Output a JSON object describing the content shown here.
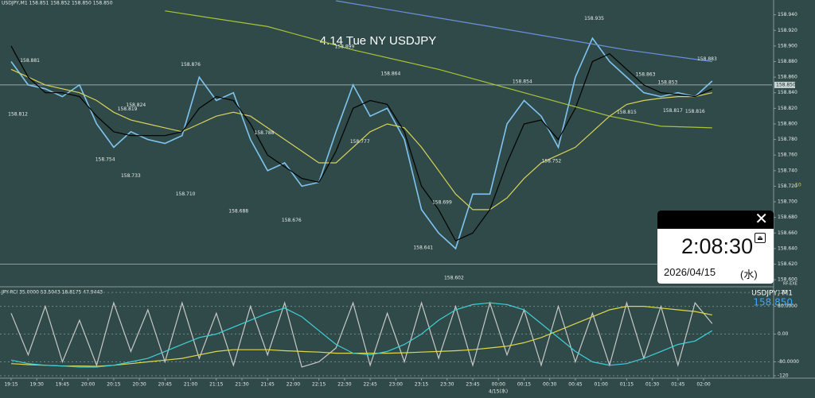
{
  "chart_data": [
    {
      "type": "line",
      "title": "4.14 Tue NY USDJPY",
      "header": "USDJPY,M1  158.851 158.852 158.850 158.850",
      "date_label": "4/15(水)",
      "axis_note": "10",
      "corner_note": "RF-EXE",
      "xlim": [
        -6.5,
        445
      ],
      "ylim": [
        158.592,
        158.959
      ],
      "xticks": [
        {
          "value": 0,
          "label": "19:15"
        },
        {
          "value": 15,
          "label": "19:30"
        },
        {
          "value": 30,
          "label": "19:45"
        },
        {
          "value": 45,
          "label": "20:00"
        },
        {
          "value": 60,
          "label": "20:15"
        },
        {
          "value": 75,
          "label": "20:30"
        },
        {
          "value": 90,
          "label": "20:45"
        },
        {
          "value": 105,
          "label": "21:00"
        },
        {
          "value": 120,
          "label": "21:15"
        },
        {
          "value": 135,
          "label": "21:30"
        },
        {
          "value": 150,
          "label": "21:45"
        },
        {
          "value": 165,
          "label": "22:00"
        },
        {
          "value": 180,
          "label": "22:15"
        },
        {
          "value": 195,
          "label": "22:30"
        },
        {
          "value": 210,
          "label": "22:45"
        },
        {
          "value": 225,
          "label": "23:00"
        },
        {
          "value": 240,
          "label": "23:15"
        },
        {
          "value": 255,
          "label": "23:30"
        },
        {
          "value": 270,
          "label": "23:45"
        },
        {
          "value": 285,
          "label": "00:00"
        },
        {
          "value": 300,
          "label": "00:15"
        },
        {
          "value": 315,
          "label": "00:30"
        },
        {
          "value": 330,
          "label": "00:45"
        },
        {
          "value": 345,
          "label": "01:00"
        },
        {
          "value": 360,
          "label": "01:15"
        },
        {
          "value": 375,
          "label": "01:30"
        },
        {
          "value": 390,
          "label": "01:45"
        },
        {
          "value": 405,
          "label": "02:00"
        }
      ],
      "yticks": [
        {
          "value": 158.94,
          "label": "158.940"
        },
        {
          "value": 158.92,
          "label": "158.920"
        },
        {
          "value": 158.9,
          "label": "158.900"
        },
        {
          "value": 158.88,
          "label": "158.880"
        },
        {
          "value": 158.86,
          "label": "158.860"
        },
        {
          "value": 158.84,
          "label": "158.840"
        },
        {
          "value": 158.82,
          "label": "158.820"
        },
        {
          "value": 158.8,
          "label": "158.800"
        },
        {
          "value": 158.78,
          "label": "158.780"
        },
        {
          "value": 158.76,
          "label": "158.760"
        },
        {
          "value": 158.74,
          "label": "158.740"
        },
        {
          "value": 158.72,
          "label": "158.720"
        },
        {
          "value": 158.7,
          "label": "158.700"
        },
        {
          "value": 158.68,
          "label": "158.680"
        },
        {
          "value": 158.66,
          "label": "158.660"
        },
        {
          "value": 158.64,
          "label": "158.640"
        },
        {
          "value": 158.62,
          "label": "158.620"
        },
        {
          "value": 158.6,
          "label": "158.600"
        }
      ],
      "last_price": {
        "value": 158.85,
        "label": "158.850"
      },
      "hline": 158.62,
      "x": [
        0,
        10,
        20,
        30,
        40,
        50,
        60,
        70,
        80,
        90,
        100,
        110,
        120,
        130,
        140,
        150,
        160,
        170,
        180,
        190,
        200,
        210,
        220,
        230,
        240,
        250,
        260,
        270,
        280,
        290,
        300,
        310,
        320,
        330,
        340,
        350,
        360,
        370,
        380,
        390,
        400,
        410
      ],
      "series": [
        {
          "color": "#7fc4f0",
          "values": [
            158.88,
            158.85,
            158.845,
            158.835,
            158.85,
            158.8,
            158.77,
            158.79,
            158.78,
            158.775,
            158.785,
            158.86,
            158.83,
            158.84,
            158.78,
            158.74,
            158.75,
            158.72,
            158.725,
            158.79,
            158.85,
            158.81,
            158.82,
            158.78,
            158.69,
            158.66,
            158.64,
            158.71,
            158.71,
            158.8,
            158.83,
            158.81,
            158.77,
            158.86,
            158.91,
            158.88,
            158.86,
            158.84,
            158.835,
            158.84,
            158.835,
            158.855
          ]
        },
        {
          "color": "#d8d35a",
          "values": [
            158.87,
            158.86,
            158.85,
            158.845,
            158.84,
            158.83,
            158.815,
            158.805,
            158.8,
            158.795,
            158.79,
            158.8,
            158.81,
            158.815,
            158.81,
            158.795,
            158.78,
            158.765,
            158.75,
            158.75,
            158.77,
            158.79,
            158.8,
            158.795,
            158.77,
            158.74,
            158.71,
            158.69,
            158.69,
            158.705,
            158.73,
            158.75,
            158.76,
            158.77,
            158.79,
            158.81,
            158.825,
            158.83,
            158.833,
            158.835,
            158.835,
            158.84
          ]
        },
        {
          "color": "#000000",
          "values": [
            158.9,
            158.86,
            158.84,
            158.84,
            158.835,
            158.81,
            158.79,
            158.785,
            158.785,
            158.785,
            158.79,
            158.82,
            158.835,
            158.83,
            158.8,
            158.76,
            158.745,
            158.73,
            158.725,
            158.765,
            158.82,
            158.83,
            158.825,
            158.79,
            158.72,
            158.69,
            158.65,
            158.66,
            158.69,
            158.75,
            158.8,
            158.805,
            158.78,
            158.82,
            158.88,
            158.89,
            158.87,
            158.85,
            158.84,
            158.838,
            158.835,
            158.845
          ]
        },
        {
          "color": "#6d8fe0",
          "x": [
            190,
            280,
            360,
            410
          ],
          "values": [
            158.958,
            158.925,
            158.895,
            158.88
          ]
        },
        {
          "color": "#a9c33a",
          "x": [
            90,
            150,
            200,
            250,
            300,
            350,
            380,
            410
          ],
          "values": [
            158.945,
            158.925,
            158.895,
            158.87,
            158.84,
            158.81,
            158.797,
            158.795
          ]
        }
      ],
      "annotations": [
        {
          "x": 11,
          "value": 158.881,
          "label": "158.881"
        },
        {
          "x": 4,
          "value": 158.812,
          "label": "158.812"
        },
        {
          "x": 73,
          "value": 158.824,
          "label": "158.824"
        },
        {
          "x": 68,
          "value": 158.819,
          "label": "158.819"
        },
        {
          "x": 55,
          "value": 158.754,
          "label": "158.754"
        },
        {
          "x": 70,
          "value": 158.733,
          "label": "158.733"
        },
        {
          "x": 105,
          "value": 158.876,
          "label": "158.876"
        },
        {
          "x": 102,
          "value": 158.71,
          "label": "158.710"
        },
        {
          "x": 133,
          "value": 158.688,
          "label": "158.688"
        },
        {
          "x": 148,
          "value": 158.788,
          "label": "158.788"
        },
        {
          "x": 164,
          "value": 158.676,
          "label": "158.676"
        },
        {
          "x": 195,
          "value": 158.899,
          "label": "158.899"
        },
        {
          "x": 204,
          "value": 158.777,
          "label": "158.777"
        },
        {
          "x": 222,
          "value": 158.864,
          "label": "158.864"
        },
        {
          "x": 252,
          "value": 158.699,
          "label": "158.699"
        },
        {
          "x": 241,
          "value": 158.641,
          "label": "158.641"
        },
        {
          "x": 259,
          "value": 158.602,
          "label": "158.602"
        },
        {
          "x": 299,
          "value": 158.854,
          "label": "158.854"
        },
        {
          "x": 316,
          "value": 158.752,
          "label": "158.752"
        },
        {
          "x": 341,
          "value": 158.935,
          "label": "158.935"
        },
        {
          "x": 360,
          "value": 158.815,
          "label": "158.815"
        },
        {
          "x": 371,
          "value": 158.863,
          "label": "158.863"
        },
        {
          "x": 384,
          "value": 158.853,
          "label": "158.853"
        },
        {
          "x": 387,
          "value": 158.817,
          "label": "158.817"
        },
        {
          "x": 400,
          "value": 158.816,
          "label": "158.816"
        },
        {
          "x": 407,
          "value": 158.883,
          "label": "158.883"
        }
      ]
    },
    {
      "type": "line",
      "header": "JPY-RCI 35.0000 53.5043 18.8175 47.9443",
      "symbol": "USDJPY, M1",
      "price": "158.850",
      "xlim": [
        -6.5,
        445
      ],
      "ylim": [
        -127,
        134
      ],
      "yticks": [
        120,
        {
          "value": 80,
          "label": "80.0000"
        },
        {
          "value": 0,
          "label": "0.00"
        },
        {
          "value": -80,
          "label": "-80.0000"
        },
        -120
      ],
      "x": [
        0,
        10,
        20,
        30,
        40,
        50,
        60,
        70,
        80,
        90,
        100,
        110,
        120,
        130,
        140,
        150,
        160,
        170,
        180,
        190,
        200,
        210,
        220,
        230,
        240,
        250,
        260,
        270,
        280,
        290,
        300,
        310,
        320,
        330,
        340,
        350,
        360,
        370,
        380,
        390,
        400,
        410
      ],
      "series": [
        {
          "color": "#c8c8c8",
          "values": [
            60,
            -60,
            80,
            -80,
            40,
            -90,
            90,
            -50,
            70,
            -80,
            90,
            -70,
            60,
            -90,
            80,
            -60,
            90,
            -95,
            -80,
            -40,
            90,
            -90,
            60,
            -80,
            90,
            -70,
            80,
            -90,
            90,
            -60,
            70,
            -90,
            80,
            -80,
            60,
            -90,
            90,
            -70,
            80,
            -90,
            90,
            30
          ]
        },
        {
          "color": "#e0d84a",
          "values": [
            -85,
            -88,
            -90,
            -92,
            -92,
            -93,
            -90,
            -85,
            -80,
            -75,
            -70,
            -60,
            -50,
            -45,
            -45,
            -45,
            -48,
            -50,
            -52,
            -55,
            -55,
            -55,
            -55,
            -54,
            -52,
            -50,
            -48,
            -45,
            -40,
            -35,
            -25,
            -10,
            10,
            30,
            50,
            70,
            80,
            80,
            75,
            70,
            65,
            55
          ]
        },
        {
          "color": "#3fd0d8",
          "values": [
            -75,
            -85,
            -90,
            -92,
            -95,
            -95,
            -90,
            -80,
            -70,
            -50,
            -30,
            -10,
            0,
            20,
            40,
            60,
            75,
            50,
            10,
            -30,
            -55,
            -60,
            -50,
            -30,
            0,
            40,
            70,
            85,
            90,
            85,
            70,
            30,
            -10,
            -50,
            -80,
            -90,
            -85,
            -70,
            -50,
            -30,
            -20,
            10
          ]
        }
      ]
    }
  ],
  "clock": {
    "time": "2:08:30",
    "date": "2026/04/15",
    "weekday": "(水)"
  }
}
